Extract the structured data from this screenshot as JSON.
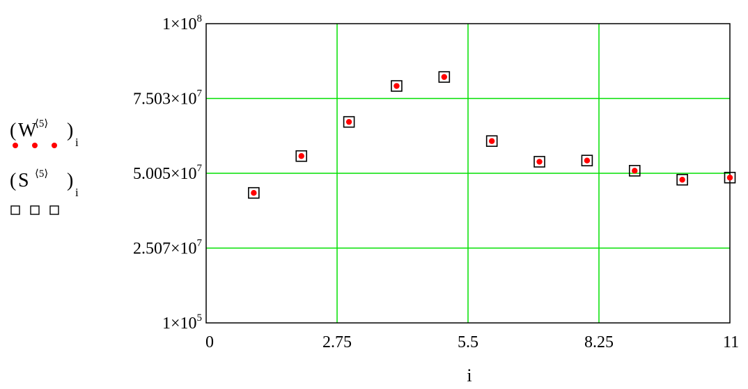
{
  "chart_data": {
    "type": "scatter",
    "title": "",
    "xlabel": "i",
    "ylabel": "",
    "xlim": [
      0,
      11
    ],
    "ylim": [
      100000,
      100000000
    ],
    "grid": true,
    "grid_color": "#00e000",
    "x_ticks": [
      {
        "value": 0,
        "label": "0"
      },
      {
        "value": 2.75,
        "label": "2.75"
      },
      {
        "value": 5.5,
        "label": "5.5"
      },
      {
        "value": 8.25,
        "label": "8.25"
      },
      {
        "value": 11,
        "label": "11"
      }
    ],
    "y_ticks": [
      {
        "value": 100000,
        "mantissa": "1×10",
        "exponent": "5"
      },
      {
        "value": 25070000,
        "mantissa": "2.507×10",
        "exponent": "7"
      },
      {
        "value": 50050000,
        "mantissa": "5.005×10",
        "exponent": "7"
      },
      {
        "value": 75030000,
        "mantissa": "7.503×10",
        "exponent": "7"
      },
      {
        "value": 100000000,
        "mantissa": "1×10",
        "exponent": "8"
      }
    ],
    "x": [
      1,
      2,
      3,
      4,
      5,
      6,
      7,
      8,
      9,
      10,
      11
    ],
    "series": [
      {
        "marker": "dot",
        "color": "#ff0000",
        "values": [
          43500000,
          55800000,
          67200000,
          79200000,
          82200000,
          60800000,
          53900000,
          54300000,
          50900000,
          47900000,
          48600000
        ]
      },
      {
        "marker": "open-square",
        "color": "#000000",
        "values": [
          43500000,
          55800000,
          67200000,
          79200000,
          82200000,
          60800000,
          53900000,
          54300000,
          50900000,
          47900000,
          48600000
        ]
      }
    ]
  },
  "legend": {
    "entries": [
      {
        "base": "W",
        "superscript": "⟨5⟩",
        "subscript": "i",
        "marker": "dot",
        "color": "#ff0000"
      },
      {
        "base": "S",
        "superscript": "⟨5⟩",
        "subscript": "i",
        "marker": "open-square",
        "color": "#000000"
      }
    ]
  }
}
